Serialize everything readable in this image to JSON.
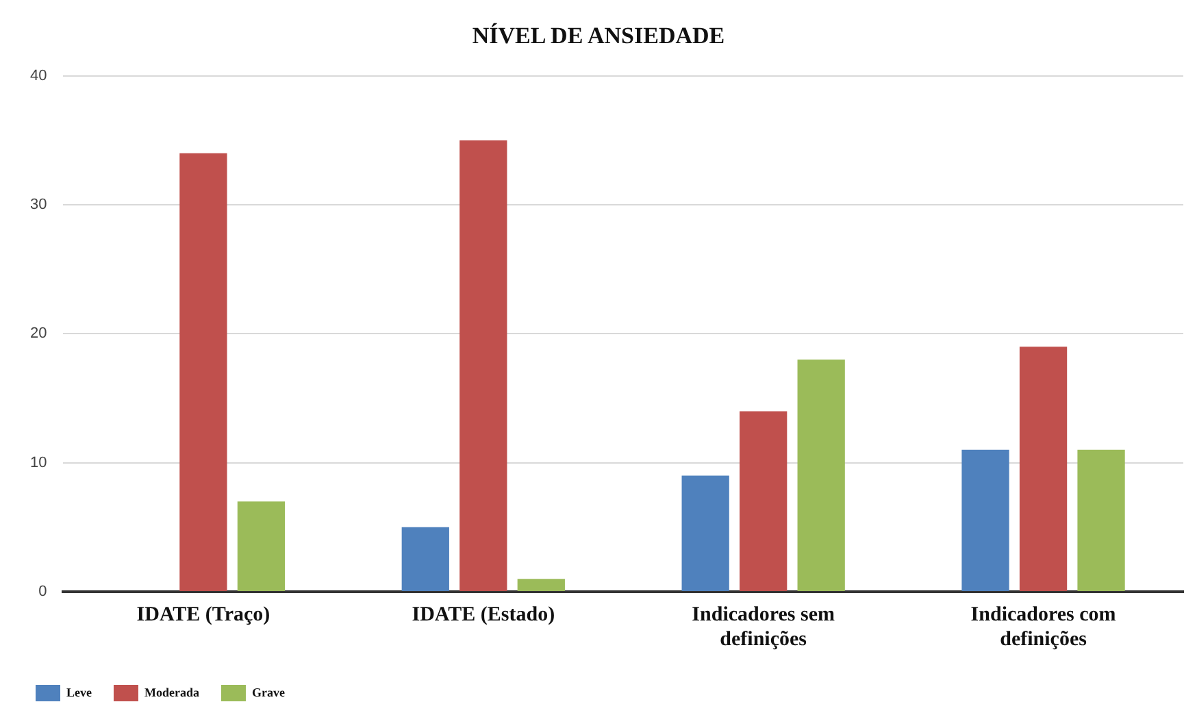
{
  "chart_data": {
    "type": "bar",
    "title": "NÍVEL DE ANSIEDADE",
    "categories": [
      "IDATE (Traço)",
      "IDATE (Estado)",
      "Indicadores sem definições",
      "Indicadores com definições"
    ],
    "series": [
      {
        "name": "Leve",
        "color": "#4f81bd",
        "values": [
          0,
          5,
          9,
          11
        ]
      },
      {
        "name": "Moderada",
        "color": "#c0504d",
        "values": [
          34,
          35,
          14,
          19
        ]
      },
      {
        "name": "Grave",
        "color": "#9bbb59",
        "values": [
          7,
          1,
          18,
          11
        ]
      }
    ],
    "ylim": [
      0,
      40
    ],
    "yticks": [
      0,
      10,
      20,
      30,
      40
    ],
    "grid": "y",
    "legend": "bottom left"
  }
}
